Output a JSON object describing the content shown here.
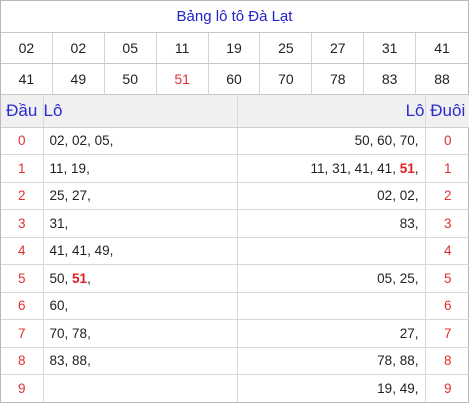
{
  "title": "Bảng lô tô Đà Lạt",
  "numbers": [
    [
      "02",
      "02",
      "05",
      "11",
      "19",
      "25",
      "27",
      "31",
      "41"
    ],
    [
      "41",
      "49",
      "50",
      "51",
      "60",
      "70",
      "78",
      "83",
      "88"
    ]
  ],
  "highlight_number": "51",
  "headers": {
    "dau": "Đầu",
    "lo_left": "Lô",
    "lo_right": "Lô",
    "duoi": "Đuôi"
  },
  "rows": [
    {
      "dau": "0",
      "left": [
        "02",
        "02",
        "05"
      ],
      "right": [
        "50",
        "60",
        "70"
      ],
      "duoi": "0"
    },
    {
      "dau": "1",
      "left": [
        "11",
        "19"
      ],
      "right": [
        "11",
        "31",
        "41",
        "41",
        "51"
      ],
      "duoi": "1"
    },
    {
      "dau": "2",
      "left": [
        "25",
        "27"
      ],
      "right": [
        "02",
        "02"
      ],
      "duoi": "2"
    },
    {
      "dau": "3",
      "left": [
        "31"
      ],
      "right": [
        "83"
      ],
      "duoi": "3"
    },
    {
      "dau": "4",
      "left": [
        "41",
        "41",
        "49"
      ],
      "right": [],
      "duoi": "4"
    },
    {
      "dau": "5",
      "left": [
        "50",
        "51"
      ],
      "right": [
        "05",
        "25"
      ],
      "duoi": "5"
    },
    {
      "dau": "6",
      "left": [
        "60"
      ],
      "right": [],
      "duoi": "6"
    },
    {
      "dau": "7",
      "left": [
        "70",
        "78"
      ],
      "right": [
        "27"
      ],
      "duoi": "7"
    },
    {
      "dau": "8",
      "left": [
        "83",
        "88"
      ],
      "right": [
        "78",
        "88"
      ],
      "duoi": "8"
    },
    {
      "dau": "9",
      "left": [],
      "right": [
        "19",
        "49"
      ],
      "duoi": "9"
    }
  ],
  "colors": {
    "title": "#2222c8",
    "header": "#2b2bd0",
    "index": "#e03030",
    "highlight": "#e02020"
  }
}
